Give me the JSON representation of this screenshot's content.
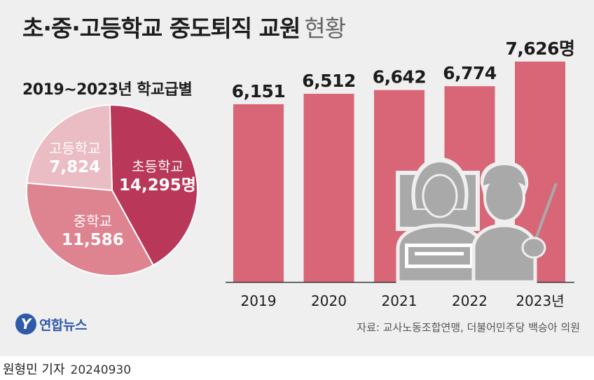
{
  "title": {
    "main": "초·중·고등학교 중도퇴직 교원",
    "sub": "현황"
  },
  "colors": {
    "bar": "#d96676",
    "pie_elementary": "#b9385a",
    "pie_middle": "#de8390",
    "pie_high": "#eabcc3",
    "background": "#efefef",
    "illustration": "#a9a9a9"
  },
  "chart_data": [
    {
      "type": "bar",
      "categories": [
        "2019",
        "2020",
        "2021",
        "2022",
        "2023년"
      ],
      "values": [
        6151,
        6512,
        6642,
        6774,
        7626
      ],
      "data_labels": [
        "6,151",
        "6,512",
        "6,642",
        "6,774",
        "7,626명"
      ],
      "ylim": [
        0,
        7800
      ],
      "grid": false
    },
    {
      "type": "pie",
      "title": "2019~2023년 학교급별",
      "labels": [
        "초등학교",
        "중학교",
        "고등학교"
      ],
      "values": [
        14295,
        11586,
        7824
      ],
      "value_labels": [
        "14,295명",
        "11,586",
        "7,824"
      ]
    }
  ],
  "illustration": "teachers-icon",
  "logo": {
    "mark": "Y",
    "text": "연합뉴스"
  },
  "source": "자료: 교사노동조합연맹, 더불어민주당 백승아 의원",
  "credit": {
    "author": "원형민 기자",
    "date": "20240930"
  }
}
